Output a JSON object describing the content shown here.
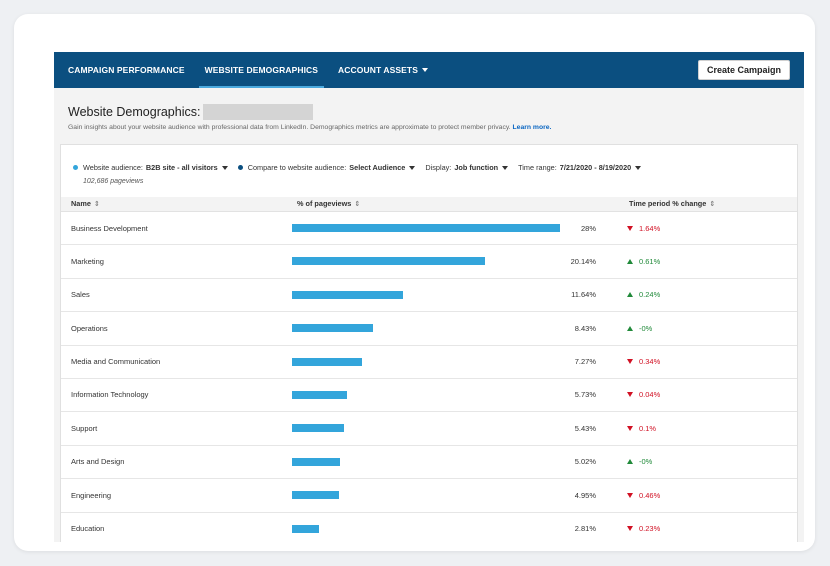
{
  "nav": {
    "tabs": [
      {
        "label": "CAMPAIGN PERFORMANCE"
      },
      {
        "label": "WEBSITE DEMOGRAPHICS"
      },
      {
        "label": "ACCOUNT ASSETS"
      }
    ],
    "active_tab": 1,
    "create_label": "Create Campaign"
  },
  "header": {
    "title": "Website Demographics:",
    "subtitle": "Gain insights about your website audience with professional data from LinkedIn. Demographics metrics are approximate to protect member privacy.",
    "learn_more": "Learn more."
  },
  "filters": {
    "audience_label": "Website audience:",
    "audience_value": "B2B site - all visitors",
    "compare_label": "Compare to website audience:",
    "compare_value": "Select Audience",
    "display_label": "Display:",
    "display_value": "Job function",
    "range_label": "Time range:",
    "range_value": "7/21/2020 - 8/19/2020",
    "pageviews": "102,686 pageviews",
    "audience_color": "#33a5db",
    "compare_color": "#0b4f80"
  },
  "table": {
    "col_name": "Name",
    "col_pct": "% of pageviews",
    "col_change": "Time period % change",
    "rows": [
      {
        "name": "Business Development",
        "pct": "28%",
        "value": 28,
        "change": "1.64%",
        "dir": "down"
      },
      {
        "name": "Marketing",
        "pct": "20.14%",
        "value": 20.14,
        "change": "0.61%",
        "dir": "up"
      },
      {
        "name": "Sales",
        "pct": "11.64%",
        "value": 11.64,
        "change": "0.24%",
        "dir": "up"
      },
      {
        "name": "Operations",
        "pct": "8.43%",
        "value": 8.43,
        "change": "-0%",
        "dir": "up"
      },
      {
        "name": "Media and Communication",
        "pct": "7.27%",
        "value": 7.27,
        "change": "0.34%",
        "dir": "down"
      },
      {
        "name": "Information Technology",
        "pct": "5.73%",
        "value": 5.73,
        "change": "0.04%",
        "dir": "down"
      },
      {
        "name": "Support",
        "pct": "5.43%",
        "value": 5.43,
        "change": "0.1%",
        "dir": "down"
      },
      {
        "name": "Arts and Design",
        "pct": "5.02%",
        "value": 5.02,
        "change": "-0%",
        "dir": "up"
      },
      {
        "name": "Engineering",
        "pct": "4.95%",
        "value": 4.95,
        "change": "0.46%",
        "dir": "down"
      },
      {
        "name": "Education",
        "pct": "2.81%",
        "value": 2.81,
        "change": "0.23%",
        "dir": "down"
      }
    ]
  },
  "colors": {
    "nav_bg": "#0b4f80",
    "bar": "#33a5db",
    "down": "#d11124",
    "up": "#218a3a",
    "link": "#0a66c2"
  }
}
